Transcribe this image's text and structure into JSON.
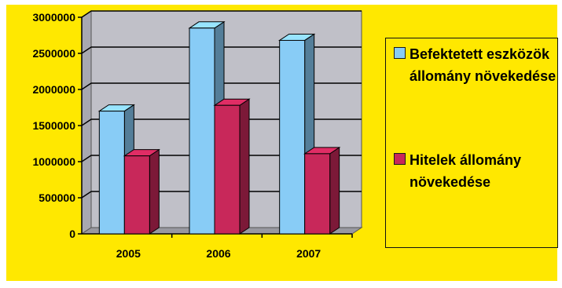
{
  "chart_data": {
    "type": "bar",
    "categories": [
      "2005",
      "2006",
      "2007"
    ],
    "series": [
      {
        "name": "Befektetett eszközök állomány növekedése",
        "values": [
          1700000,
          2850000,
          2680000
        ],
        "color": "#88ccf6"
      },
      {
        "name": "Hitelek állomány növekedése",
        "values": [
          1080000,
          1780000,
          1110000
        ],
        "color": "#c8285a"
      }
    ],
    "ylim": [
      0,
      3000000
    ],
    "yticks": [
      "0",
      "500000",
      "1000000",
      "1500000",
      "2000000",
      "2500000",
      "3000000"
    ],
    "ytick_values": [
      0,
      500000,
      1000000,
      1500000,
      2000000,
      2500000,
      3000000
    ],
    "grid": true,
    "style": "3d-column",
    "legend_position": "right",
    "colors": {
      "background": "#ffe800",
      "plot_wall": "#c0c0c8",
      "floor": "#9898a0"
    }
  }
}
